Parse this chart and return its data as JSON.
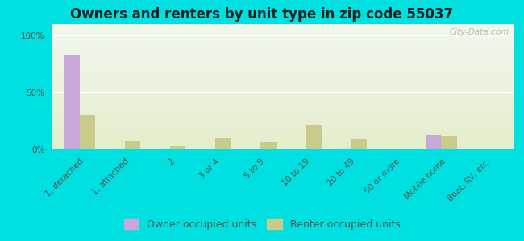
{
  "title": "Owners and renters by unit type in zip code 55037",
  "categories": [
    "1, detached",
    "1, attached",
    "2",
    "3 or 4",
    "5 to 9",
    "10 to 19",
    "20 to 49",
    "50 or more",
    "Mobile home",
    "Boat, RV, etc."
  ],
  "owner_values": [
    83,
    0,
    0,
    0,
    0,
    0,
    0,
    0,
    13,
    0
  ],
  "renter_values": [
    30,
    7,
    3,
    10,
    6,
    22,
    9,
    0,
    12,
    0
  ],
  "owner_color": "#c8a8d8",
  "renter_color": "#c8cc88",
  "background_color": "#00e0e0",
  "plot_bg_top": "#f2f7ec",
  "plot_bg_bottom": "#e4eecc",
  "ylabel_ticks": [
    "0%",
    "50%",
    "100%"
  ],
  "yticks": [
    0,
    50,
    100
  ],
  "ylim": [
    0,
    110
  ],
  "bar_width": 0.35,
  "title_fontsize": 12,
  "tick_fontsize": 7.5,
  "legend_fontsize": 9,
  "watermark_text": "City-Data.com"
}
